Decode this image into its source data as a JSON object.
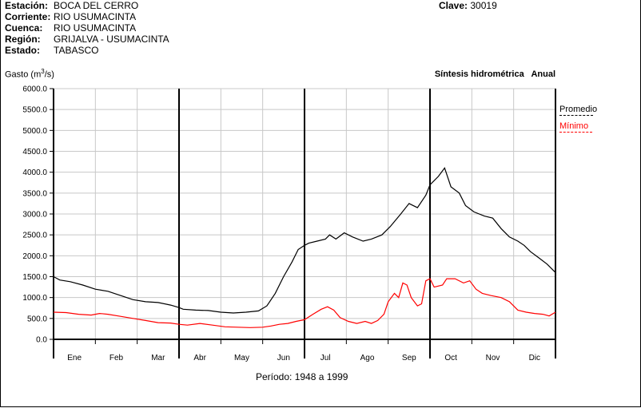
{
  "station": {
    "rows": [
      {
        "label": "Estación:",
        "value": "BOCA DEL CERRO"
      },
      {
        "label": "Corriente:",
        "value": "RIO USUMACINTA"
      },
      {
        "label": "Cuenca:",
        "value": "RIO USUMACINTA"
      },
      {
        "label": "Región:",
        "value": "GRIJALVA - USUMACINTA"
      },
      {
        "label": "Estado:",
        "value": "TABASCO"
      }
    ],
    "clave_label": "Clave:",
    "clave_value": "30019"
  },
  "header": {
    "ylabel_pre": "Gasto (m",
    "ylabel_sup": "3",
    "ylabel_post": "/s)",
    "synthesis": "Síntesis hidrométrica   Anual"
  },
  "footer": {
    "period": "Período:  1948 a 1999"
  },
  "colors": {
    "promedio": "#000000",
    "minimo": "#ff0000",
    "grid": "#c8c8c8",
    "axis": "#000000"
  },
  "chart_data": {
    "type": "line",
    "title": "Síntesis hidrométrica   Anual",
    "xlabel": "Período:  1948 a 1999",
    "ylabel": "Gasto (m3/s)",
    "ylim": [
      0,
      6000
    ],
    "yticks": [
      "0.0",
      "500.0",
      "1000.0",
      "1500.0",
      "2000.0",
      "2500.0",
      "3000.0",
      "3500.0",
      "4000.0",
      "4500.0",
      "5000.0",
      "5500.0",
      "6000.0"
    ],
    "categories": [
      "Ene",
      "Feb",
      "Mar",
      "Abr",
      "May",
      "Jun",
      "Jul",
      "Ago",
      "Sep",
      "Oct",
      "Nov",
      "Dic"
    ],
    "grid": true,
    "legend_position": "right",
    "series": [
      {
        "name": "Promedio",
        "values": [
          [
            0.0,
            1500
          ],
          [
            0.15,
            1420
          ],
          [
            0.4,
            1380
          ],
          [
            0.7,
            1300
          ],
          [
            1.0,
            1200
          ],
          [
            1.3,
            1150
          ],
          [
            1.6,
            1050
          ],
          [
            1.9,
            950
          ],
          [
            2.2,
            900
          ],
          [
            2.5,
            880
          ],
          [
            2.8,
            820
          ],
          [
            3.0,
            760
          ],
          [
            3.1,
            720
          ],
          [
            3.4,
            700
          ],
          [
            3.7,
            690
          ],
          [
            4.0,
            650
          ],
          [
            4.3,
            630
          ],
          [
            4.6,
            650
          ],
          [
            4.9,
            680
          ],
          [
            5.1,
            800
          ],
          [
            5.3,
            1100
          ],
          [
            5.5,
            1500
          ],
          [
            5.7,
            1850
          ],
          [
            5.85,
            2150
          ],
          [
            6.0,
            2250
          ],
          [
            6.1,
            2300
          ],
          [
            6.3,
            2350
          ],
          [
            6.5,
            2400
          ],
          [
            6.6,
            2500
          ],
          [
            6.75,
            2400
          ],
          [
            6.95,
            2550
          ],
          [
            7.15,
            2450
          ],
          [
            7.4,
            2350
          ],
          [
            7.6,
            2400
          ],
          [
            7.85,
            2500
          ],
          [
            8.05,
            2700
          ],
          [
            8.3,
            3000
          ],
          [
            8.5,
            3250
          ],
          [
            8.7,
            3150
          ],
          [
            8.9,
            3450
          ],
          [
            9.0,
            3700
          ],
          [
            9.2,
            3900
          ],
          [
            9.35,
            4100
          ],
          [
            9.5,
            3650
          ],
          [
            9.7,
            3500
          ],
          [
            9.85,
            3200
          ],
          [
            10.05,
            3050
          ],
          [
            10.3,
            2950
          ],
          [
            10.5,
            2900
          ],
          [
            10.7,
            2650
          ],
          [
            10.9,
            2450
          ],
          [
            11.1,
            2350
          ],
          [
            11.25,
            2250
          ],
          [
            11.4,
            2100
          ],
          [
            11.6,
            1950
          ],
          [
            11.8,
            1800
          ],
          [
            12.0,
            1600
          ]
        ]
      },
      {
        "name": "Mínimo",
        "values": [
          [
            0.0,
            650
          ],
          [
            0.3,
            640
          ],
          [
            0.6,
            600
          ],
          [
            0.9,
            580
          ],
          [
            1.1,
            620
          ],
          [
            1.3,
            600
          ],
          [
            1.6,
            550
          ],
          [
            1.9,
            500
          ],
          [
            2.2,
            450
          ],
          [
            2.5,
            400
          ],
          [
            2.8,
            390
          ],
          [
            3.0,
            360
          ],
          [
            3.2,
            340
          ],
          [
            3.5,
            380
          ],
          [
            3.8,
            340
          ],
          [
            4.1,
            300
          ],
          [
            4.4,
            290
          ],
          [
            4.7,
            280
          ],
          [
            5.0,
            290
          ],
          [
            5.2,
            320
          ],
          [
            5.4,
            360
          ],
          [
            5.6,
            380
          ],
          [
            5.8,
            430
          ],
          [
            6.0,
            470
          ],
          [
            6.2,
            600
          ],
          [
            6.4,
            720
          ],
          [
            6.55,
            780
          ],
          [
            6.7,
            700
          ],
          [
            6.85,
            520
          ],
          [
            7.05,
            430
          ],
          [
            7.25,
            380
          ],
          [
            7.45,
            430
          ],
          [
            7.6,
            380
          ],
          [
            7.75,
            450
          ],
          [
            7.9,
            600
          ],
          [
            8.0,
            900
          ],
          [
            8.15,
            1100
          ],
          [
            8.25,
            1000
          ],
          [
            8.35,
            1350
          ],
          [
            8.45,
            1300
          ],
          [
            8.55,
            1000
          ],
          [
            8.7,
            800
          ],
          [
            8.8,
            850
          ],
          [
            8.9,
            1400
          ],
          [
            9.0,
            1450
          ],
          [
            9.1,
            1250
          ],
          [
            9.3,
            1300
          ],
          [
            9.4,
            1450
          ],
          [
            9.6,
            1450
          ],
          [
            9.8,
            1350
          ],
          [
            9.95,
            1400
          ],
          [
            10.1,
            1200
          ],
          [
            10.25,
            1100
          ],
          [
            10.45,
            1050
          ],
          [
            10.7,
            1000
          ],
          [
            10.9,
            900
          ],
          [
            11.1,
            700
          ],
          [
            11.3,
            650
          ],
          [
            11.5,
            620
          ],
          [
            11.7,
            600
          ],
          [
            11.85,
            560
          ],
          [
            12.0,
            650
          ]
        ]
      }
    ]
  }
}
